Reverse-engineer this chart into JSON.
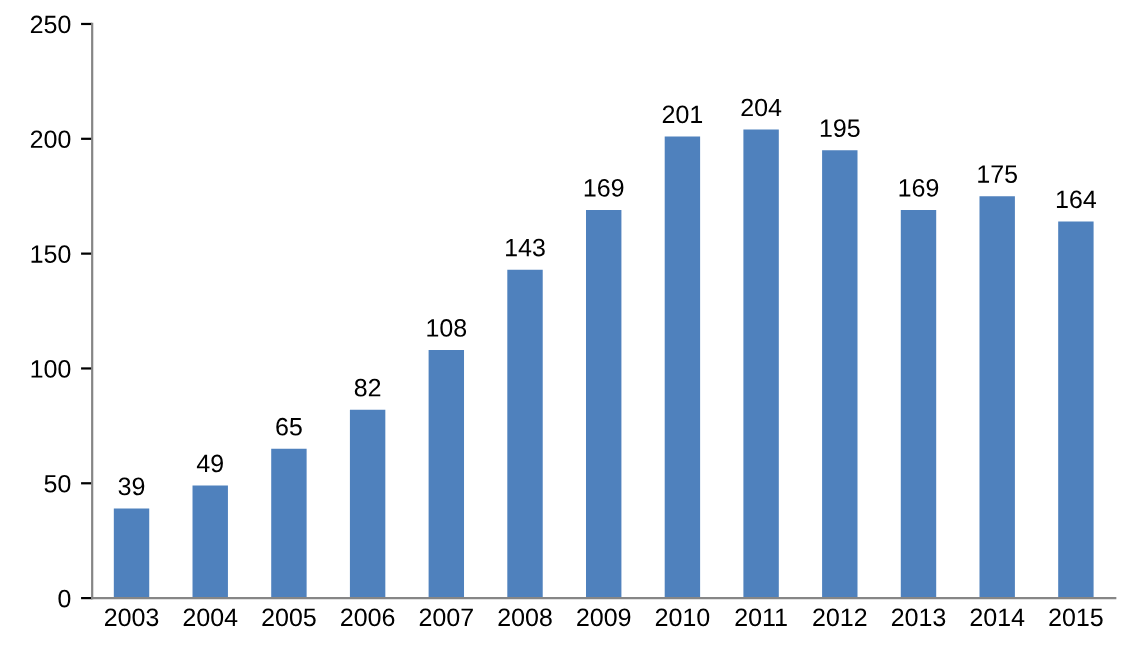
{
  "chart_data": {
    "type": "bar",
    "categories": [
      "2003",
      "2004",
      "2005",
      "2006",
      "2007",
      "2008",
      "2009",
      "2010",
      "2011",
      "2012",
      "2013",
      "2014",
      "2015"
    ],
    "values": [
      39,
      49,
      65,
      82,
      108,
      143,
      169,
      201,
      204,
      195,
      169,
      175,
      164
    ],
    "color": "#4f81bd",
    "ylim": [
      0,
      250
    ],
    "yticks": [
      0,
      50,
      100,
      150,
      200,
      250
    ],
    "grid": false,
    "legend": false,
    "data_labels": true
  }
}
